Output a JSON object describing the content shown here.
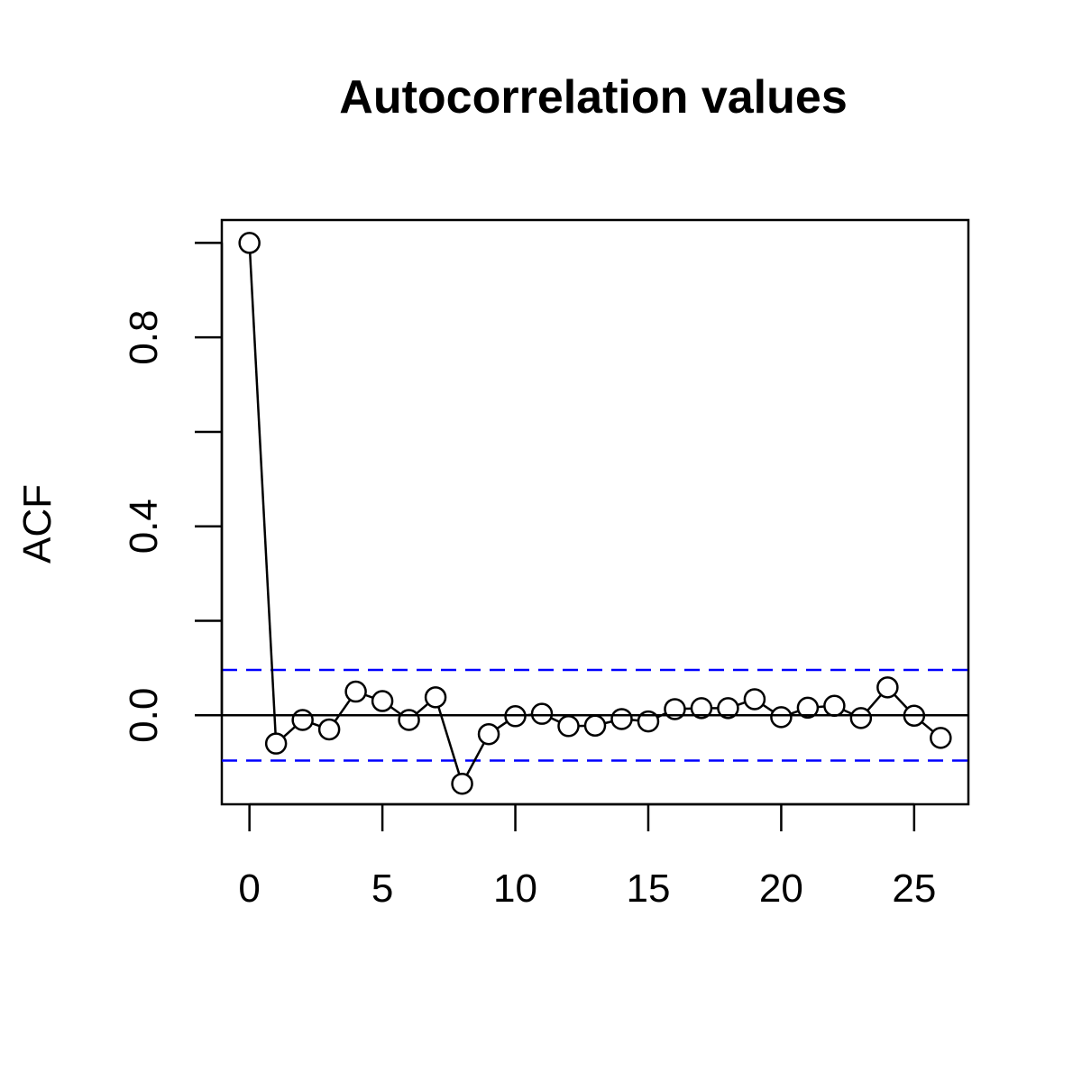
{
  "chart_data": {
    "type": "line",
    "title": "Autocorrelation values",
    "xlabel": "",
    "ylabel": "ACF",
    "x": [
      0,
      1,
      2,
      3,
      4,
      5,
      6,
      7,
      8,
      9,
      10,
      11,
      12,
      13,
      14,
      15,
      16,
      17,
      18,
      19,
      20,
      21,
      22,
      23,
      24,
      25,
      26
    ],
    "series": [
      {
        "values": [
          1.0,
          -0.06,
          -0.01,
          -0.03,
          0.05,
          0.03,
          -0.01,
          0.038,
          -0.145,
          -0.04,
          -0.002,
          0.003,
          -0.023,
          -0.022,
          -0.008,
          -0.013,
          0.013,
          0.015,
          0.015,
          0.034,
          -0.004,
          0.016,
          0.02,
          -0.006,
          0.059,
          -0.001,
          -0.048
        ],
        "color": "#000000",
        "marker": "open-circle"
      }
    ],
    "reference_lines": [
      {
        "y": 0.0,
        "color": "#000000",
        "style": "solid"
      },
      {
        "y": 0.096,
        "color": "#0000ff",
        "style": "dashed"
      },
      {
        "y": -0.096,
        "color": "#0000ff",
        "style": "dashed"
      }
    ],
    "xticks": [
      0,
      5,
      10,
      15,
      20,
      25
    ],
    "xtick_labels": [
      "0",
      "5",
      "10",
      "15",
      "20",
      "25"
    ],
    "yticks": [
      0.0,
      0.2,
      0.4,
      0.6,
      0.8,
      1.0
    ],
    "ytick_labels": [
      "0.0",
      "",
      "0.4",
      "",
      "0.8",
      ""
    ],
    "xlim": [
      -1.04,
      27.04
    ],
    "ylim": [
      -0.1885,
      1.0485
    ],
    "grid": false,
    "legend": "none"
  }
}
